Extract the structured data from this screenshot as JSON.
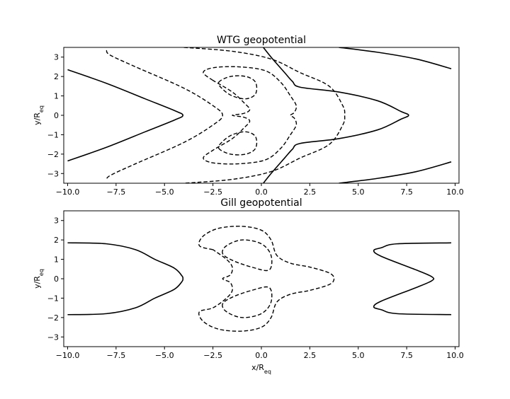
{
  "chart_data": [
    {
      "type": "contour",
      "title": "WTG geopotential",
      "xlabel": "",
      "ylabel": "y/R",
      "ylabel_sub": "eq",
      "xlim": [
        -10.2,
        10.2
      ],
      "ylim": [
        -3.5,
        3.5
      ],
      "xticks": [
        -10.0,
        -7.5,
        -5.0,
        -2.5,
        0.0,
        2.5,
        5.0,
        7.5,
        10.0
      ],
      "xtick_labels": [
        "−10.0",
        "−7.5",
        "−5.0",
        "−2.5",
        "0.0",
        "2.5",
        "5.0",
        "7.5",
        "10.0"
      ],
      "yticks": [
        -3,
        -2,
        -1,
        0,
        1,
        2,
        3
      ],
      "ytick_labels": [
        "−3",
        "−2",
        "−1",
        "0",
        "1",
        "2",
        "3"
      ],
      "contours": [
        {
          "style": "solid",
          "points": [
            [
              -10,
              2.35
            ],
            [
              -8,
              1.65
            ],
            [
              -6,
              0.85
            ],
            [
              -4.5,
              0.25
            ],
            [
              -4.05,
              0
            ],
            [
              -4.5,
              -0.25
            ],
            [
              -6,
              -0.85
            ],
            [
              -8,
              -1.65
            ],
            [
              -10,
              -2.35
            ]
          ]
        },
        {
          "style": "solid",
          "points": [
            [
              0.1,
              3.5
            ],
            [
              0.5,
              3.0
            ],
            [
              1.2,
              2.2
            ],
            [
              1.6,
              1.75
            ],
            [
              2,
              1.45
            ],
            [
              4,
              1.2
            ],
            [
              6,
              0.75
            ],
            [
              7.2,
              0.2
            ],
            [
              7.6,
              0
            ],
            [
              7.2,
              -0.2
            ],
            [
              6,
              -0.75
            ],
            [
              4,
              -1.2
            ],
            [
              2,
              -1.45
            ],
            [
              1.6,
              -1.75
            ],
            [
              1.2,
              -2.2
            ],
            [
              0.5,
              -3.0
            ],
            [
              0.1,
              -3.5
            ]
          ]
        },
        {
          "style": "solid",
          "points": [
            [
              4,
              3.5
            ],
            [
              6,
              3.25
            ],
            [
              8,
              2.9
            ],
            [
              9.8,
              2.4
            ]
          ]
        },
        {
          "style": "solid",
          "points": [
            [
              4,
              -3.5
            ],
            [
              6,
              -3.25
            ],
            [
              8,
              -2.9
            ],
            [
              9.8,
              -2.4
            ]
          ]
        },
        {
          "style": "dashed",
          "points": [
            [
              -8,
              3.35
            ],
            [
              -7.8,
              3.1
            ],
            [
              -6.5,
              2.5
            ],
            [
              -4,
              1.4
            ],
            [
              -2.5,
              0.5
            ],
            [
              -2,
              0
            ],
            [
              -2.5,
              -0.5
            ],
            [
              -4,
              -1.4
            ],
            [
              -6.5,
              -2.5
            ],
            [
              -7.8,
              -3.1
            ],
            [
              -8,
              -3.35
            ]
          ]
        },
        {
          "style": "dashed",
          "points": [
            [
              -4,
              3.5
            ],
            [
              -1.5,
              3.3
            ],
            [
              0.5,
              2.9
            ],
            [
              2,
              2.2
            ],
            [
              3.5,
              1.5
            ],
            [
              4.2,
              0.5
            ],
            [
              4.3,
              0
            ],
            [
              4.2,
              -0.5
            ],
            [
              3.5,
              -1.5
            ],
            [
              2,
              -2.2
            ],
            [
              0.5,
              -2.9
            ],
            [
              -1.5,
              -3.3
            ],
            [
              -4,
              -3.5
            ]
          ]
        },
        {
          "style": "dashed",
          "points": [
            [
              -2.5,
              1.8
            ],
            [
              -3,
              2.2
            ],
            [
              -2.5,
              2.45
            ],
            [
              -1.2,
              2.5
            ],
            [
              0.2,
              2.3
            ],
            [
              1,
              1.7
            ],
            [
              1.5,
              1.0
            ],
            [
              1.8,
              0.5
            ],
            [
              1.7,
              0.15
            ],
            [
              1.5,
              0
            ],
            [
              1.7,
              -0.15
            ],
            [
              1.8,
              -0.5
            ],
            [
              1.5,
              -1.0
            ],
            [
              1,
              -1.7
            ],
            [
              0.2,
              -2.3
            ],
            [
              -1.2,
              -2.5
            ],
            [
              -2.5,
              -2.45
            ],
            [
              -3,
              -2.2
            ],
            [
              -2.5,
              -1.8
            ],
            [
              -1.5,
              -1.2
            ],
            [
              -0.9,
              -0.65
            ],
            [
              -0.6,
              -0.3
            ],
            [
              -0.9,
              -0.1
            ],
            [
              -1.5,
              0
            ],
            [
              -0.9,
              0.1
            ],
            [
              -0.6,
              0.3
            ],
            [
              -0.9,
              0.65
            ],
            [
              -1.5,
              1.2
            ],
            [
              -2.5,
              1.8
            ]
          ]
        },
        {
          "style": "dashed",
          "closed": true,
          "points": [
            [
              -2.2,
              1.7
            ],
            [
              -1.6,
              2.0
            ],
            [
              -0.8,
              2.0
            ],
            [
              -0.3,
              1.7
            ],
            [
              -0.3,
              1.1
            ],
            [
              -0.8,
              0.85
            ],
            [
              -1.5,
              1.0
            ],
            [
              -2.0,
              1.35
            ]
          ]
        },
        {
          "style": "dashed",
          "closed": true,
          "points": [
            [
              -2.2,
              -1.7
            ],
            [
              -1.6,
              -2.0
            ],
            [
              -0.8,
              -2.0
            ],
            [
              -0.3,
              -1.7
            ],
            [
              -0.3,
              -1.1
            ],
            [
              -0.8,
              -0.85
            ],
            [
              -1.5,
              -1.0
            ],
            [
              -2.0,
              -1.35
            ]
          ]
        }
      ]
    },
    {
      "type": "contour",
      "title": "Gill geopotential",
      "xlabel": "x/R",
      "xlabel_sub": "eq",
      "ylabel": "y/R",
      "ylabel_sub": "eq",
      "xlim": [
        -10.2,
        10.2
      ],
      "ylim": [
        -3.5,
        3.5
      ],
      "xticks": [
        -10.0,
        -7.5,
        -5.0,
        -2.5,
        0.0,
        2.5,
        5.0,
        7.5,
        10.0
      ],
      "xtick_labels": [
        "−10.0",
        "−7.5",
        "−5.0",
        "−2.5",
        "0.0",
        "2.5",
        "5.0",
        "7.5",
        "10.0"
      ],
      "yticks": [
        -3,
        -2,
        -1,
        0,
        1,
        2,
        3
      ],
      "ytick_labels": [
        "−3",
        "−2",
        "−1",
        "0",
        "1",
        "2",
        "3"
      ],
      "contours": [
        {
          "style": "solid",
          "points": [
            [
              -10,
              1.85
            ],
            [
              -8,
              1.8
            ],
            [
              -6.5,
              1.5
            ],
            [
              -5.5,
              1.0
            ],
            [
              -4.5,
              0.55
            ],
            [
              -4.1,
              0.15
            ],
            [
              -4.05,
              0
            ],
            [
              -4.1,
              -0.15
            ],
            [
              -4.5,
              -0.55
            ],
            [
              -5.5,
              -1.0
            ],
            [
              -6.5,
              -1.5
            ],
            [
              -8,
              -1.8
            ],
            [
              -10,
              -1.85
            ]
          ]
        },
        {
          "style": "solid",
          "points": [
            [
              9.8,
              1.85
            ],
            [
              7,
              1.8
            ],
            [
              6.2,
              1.6
            ],
            [
              5.8,
              1.45
            ],
            [
              6.2,
              1.15
            ],
            [
              8,
              0.45
            ],
            [
              8.8,
              0.1
            ],
            [
              8.8,
              -0.1
            ],
            [
              8,
              -0.45
            ],
            [
              6.2,
              -1.15
            ],
            [
              5.8,
              -1.45
            ],
            [
              6.2,
              -1.6
            ],
            [
              7,
              -1.8
            ],
            [
              9.8,
              -1.85
            ]
          ]
        },
        {
          "style": "dashed",
          "points": [
            [
              -2.5,
              1.5
            ],
            [
              -3.2,
              1.7
            ],
            [
              -3.0,
              2.2
            ],
            [
              -2.2,
              2.6
            ],
            [
              -1,
              2.7
            ],
            [
              0,
              2.5
            ],
            [
              0.5,
              2.0
            ],
            [
              0.8,
              1.2
            ],
            [
              1.5,
              0.8
            ],
            [
              2.5,
              0.6
            ],
            [
              3.5,
              0.3
            ],
            [
              3.75,
              0
            ],
            [
              3.5,
              -0.3
            ],
            [
              2.5,
              -0.6
            ],
            [
              1.5,
              -0.8
            ],
            [
              0.8,
              -1.2
            ],
            [
              0.5,
              -2.0
            ],
            [
              0,
              -2.5
            ],
            [
              -1,
              -2.7
            ],
            [
              -2.2,
              -2.6
            ],
            [
              -3.0,
              -2.2
            ],
            [
              -3.2,
              -1.7
            ],
            [
              -2.5,
              -1.5
            ],
            [
              -1.8,
              -1.0
            ],
            [
              -1.5,
              -0.6
            ],
            [
              -1.6,
              -0.2
            ],
            [
              -2,
              0
            ],
            [
              -1.6,
              0.2
            ],
            [
              -1.5,
              0.6
            ],
            [
              -1.8,
              1.0
            ],
            [
              -2.5,
              1.5
            ]
          ]
        },
        {
          "style": "dashed",
          "closed": true,
          "points": [
            [
              -2.0,
              1.3
            ],
            [
              -1.8,
              1.7
            ],
            [
              -1.0,
              2.0
            ],
            [
              0,
              1.8
            ],
            [
              0.5,
              1.2
            ],
            [
              0.4,
              0.45
            ],
            [
              -0.5,
              0.6
            ],
            [
              -1.5,
              0.95
            ]
          ]
        },
        {
          "style": "dashed",
          "closed": true,
          "points": [
            [
              -2.0,
              -1.3
            ],
            [
              -1.8,
              -1.7
            ],
            [
              -1.0,
              -2.0
            ],
            [
              0,
              -1.8
            ],
            [
              0.5,
              -1.2
            ],
            [
              0.4,
              -0.45
            ],
            [
              -0.5,
              -0.6
            ],
            [
              -1.5,
              -0.95
            ]
          ]
        }
      ]
    }
  ]
}
